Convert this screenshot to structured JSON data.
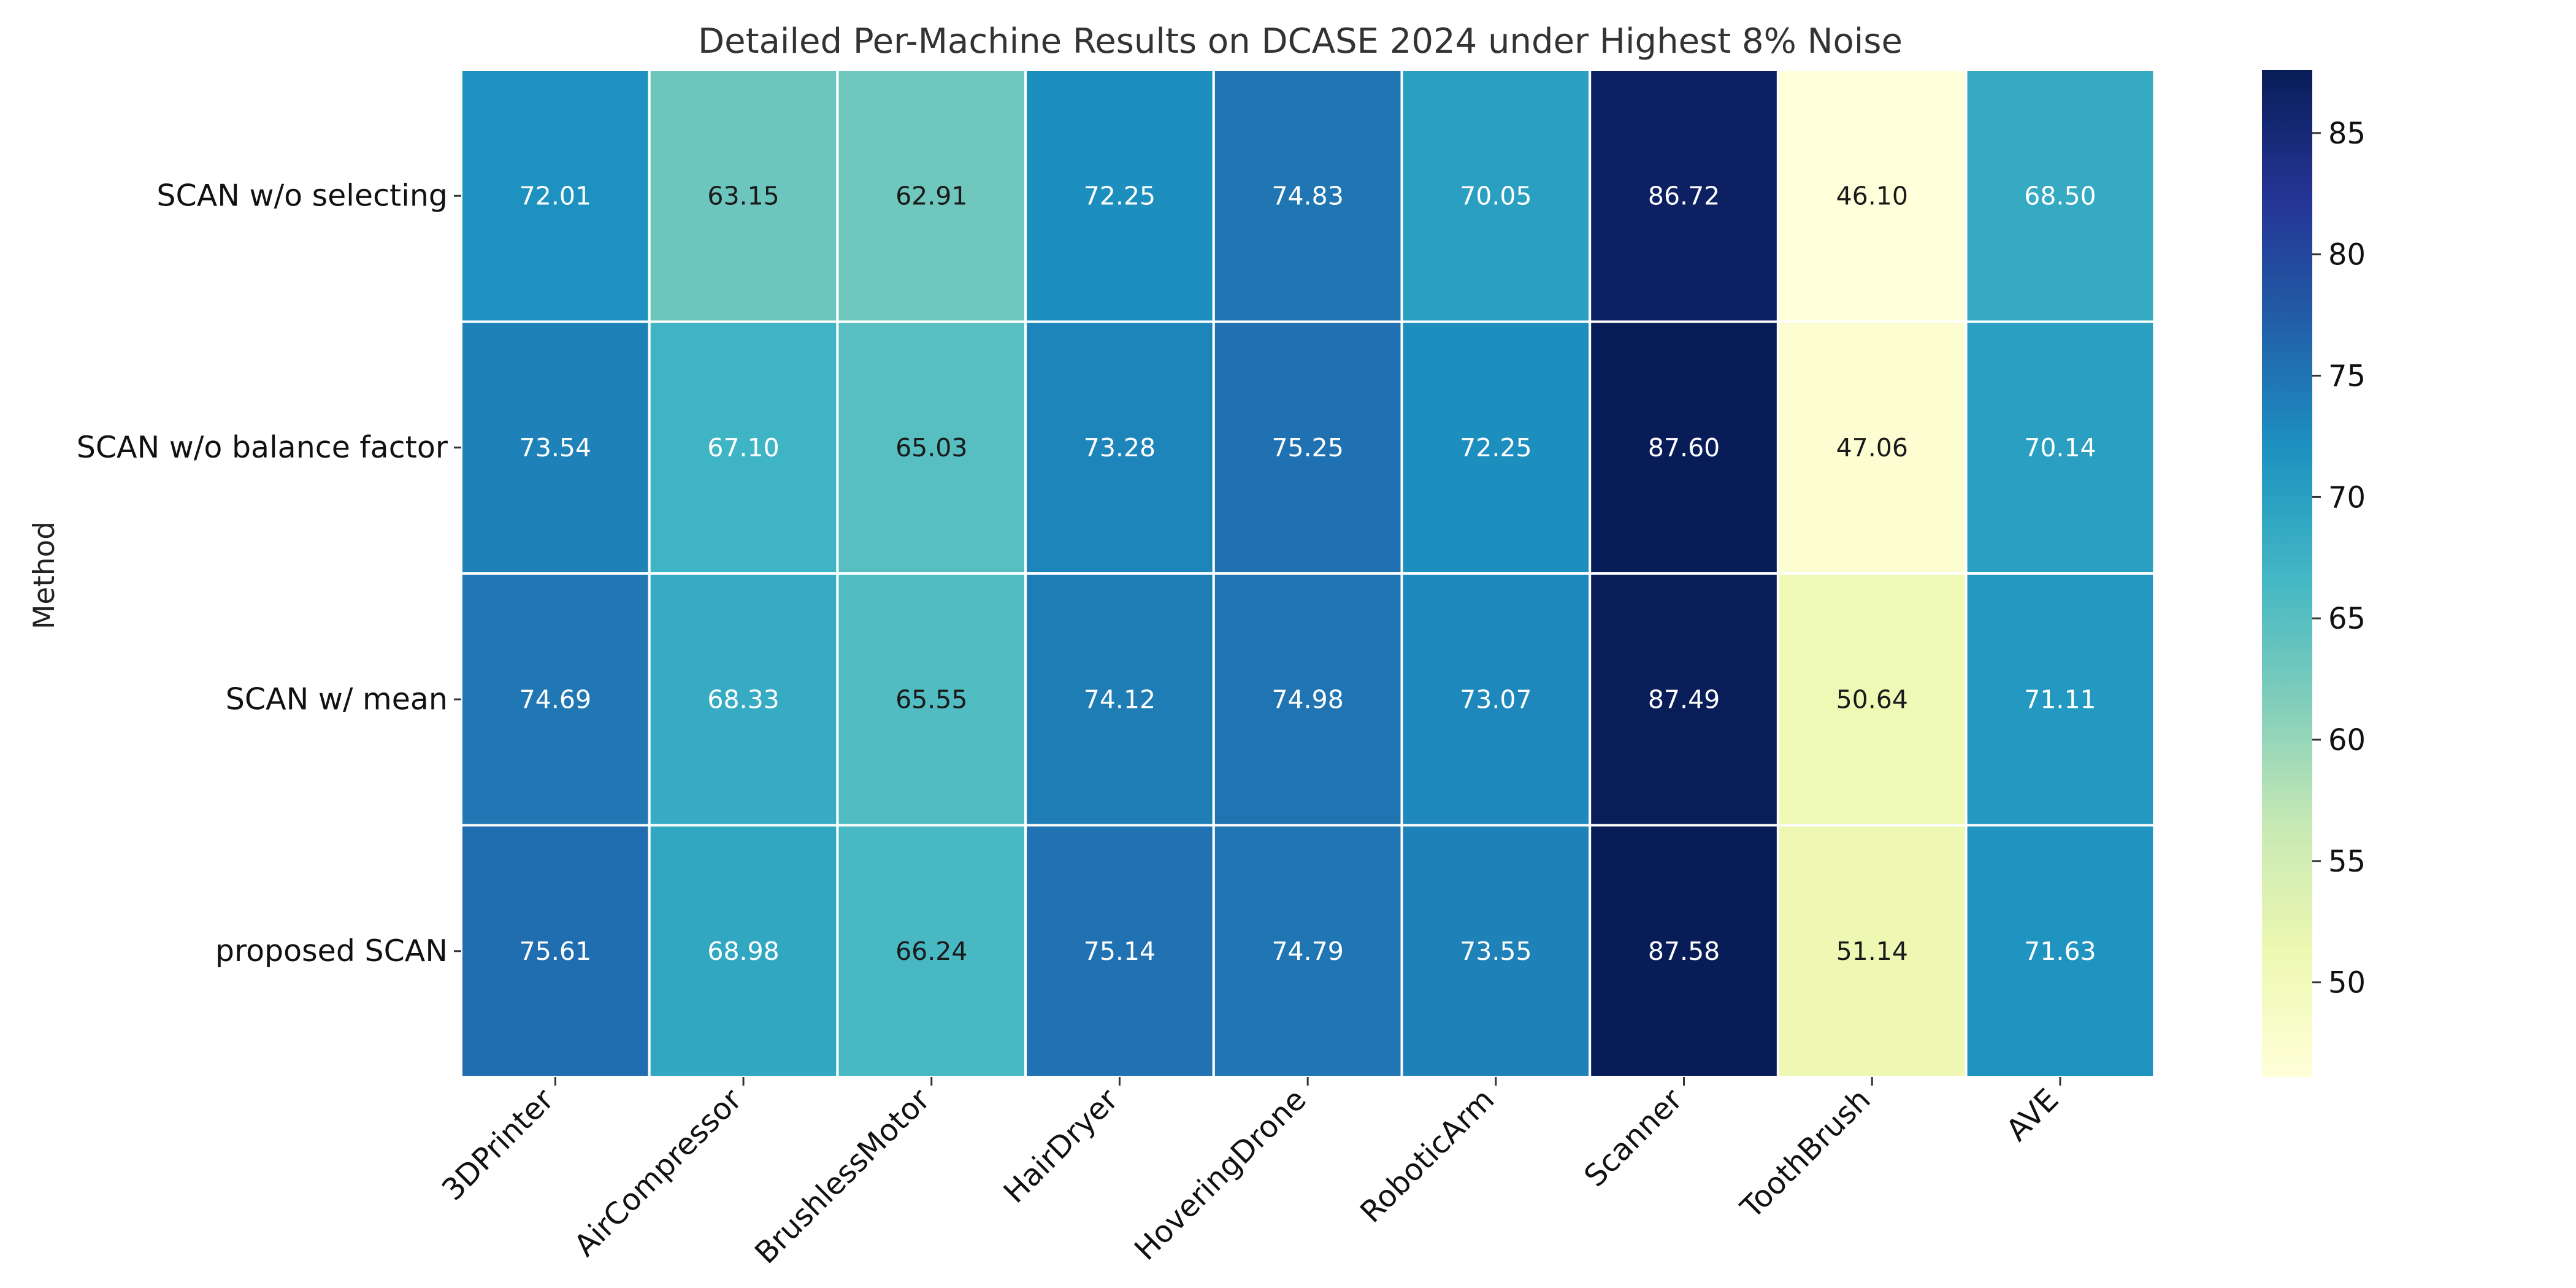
{
  "chart_data": {
    "type": "heatmap",
    "title": "Detailed Per-Machine Results on DCASE 2024 under Highest 8% Noise",
    "xlabel": "",
    "ylabel": "Method",
    "rows": [
      "SCAN w/o selecting",
      "SCAN w/o balance factor",
      "SCAN w/ mean",
      "proposed SCAN"
    ],
    "columns": [
      "3DPrinter",
      "AirCompressor",
      "BrushlessMotor",
      "HairDryer",
      "HoveringDrone",
      "RoboticArm",
      "Scanner",
      "ToothBrush",
      "AVE"
    ],
    "values": [
      [
        72.01,
        63.15,
        62.91,
        72.25,
        74.83,
        70.05,
        86.72,
        46.1,
        68.5
      ],
      [
        73.54,
        67.1,
        65.03,
        73.28,
        75.25,
        72.25,
        87.6,
        47.06,
        70.14
      ],
      [
        74.69,
        68.33,
        65.55,
        74.12,
        74.98,
        73.07,
        87.49,
        50.64,
        71.11
      ],
      [
        75.61,
        68.98,
        66.24,
        75.14,
        74.79,
        73.55,
        87.58,
        51.14,
        71.63
      ]
    ],
    "value_labels": [
      [
        "72.01",
        "63.15",
        "62.91",
        "72.25",
        "74.83",
        "70.05",
        "86.72",
        "46.10",
        "68.50"
      ],
      [
        "73.54",
        "67.10",
        "65.03",
        "73.28",
        "75.25",
        "72.25",
        "87.60",
        "47.06",
        "70.14"
      ],
      [
        "74.69",
        "68.33",
        "65.55",
        "74.12",
        "74.98",
        "73.07",
        "87.49",
        "50.64",
        "71.11"
      ],
      [
        "75.61",
        "68.98",
        "66.24",
        "75.14",
        "74.79",
        "73.55",
        "87.58",
        "51.14",
        "71.63"
      ]
    ],
    "colormap": "YlGnBu",
    "colormap_stops": [
      "#ffffd9",
      "#edf8b1",
      "#c7e9b4",
      "#7fcdbb",
      "#41b6c4",
      "#1d91c0",
      "#225ea8",
      "#253494",
      "#081d58"
    ],
    "vmin": 46.1,
    "vmax": 87.6,
    "colorbar_ticks": [
      50,
      55,
      60,
      65,
      70,
      75,
      80,
      85
    ],
    "colorbar_tick_labels": [
      "50",
      "55",
      "60",
      "65",
      "70",
      "75",
      "80",
      "85"
    ],
    "grid": "white cell separators",
    "legend": "colorbar right"
  }
}
